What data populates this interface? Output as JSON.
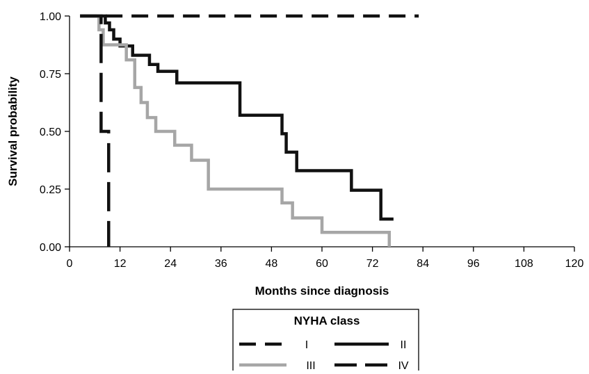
{
  "chart_data": {
    "type": "line",
    "step": true,
    "title": "",
    "xlabel": "Months since diagnosis",
    "ylabel": "Survival probability",
    "xlim": [
      0,
      120
    ],
    "ylim": [
      0,
      1
    ],
    "xticks": [
      "0",
      "12",
      "24",
      "36",
      "48",
      "60",
      "72",
      "84",
      "96",
      "108",
      "120"
    ],
    "yticks": [
      "0.00",
      "0.25",
      "0.50",
      "0.75",
      "1.00"
    ],
    "grid": false,
    "legend": {
      "title": "NYHA class",
      "placement": "bottom-center",
      "entries": [
        "I",
        "II",
        "III",
        "IV"
      ]
    },
    "series": [
      {
        "name": "I",
        "color": "#111111",
        "style": "dashed",
        "x": [
          2.5,
          83
        ],
        "y": [
          1.0,
          1.0
        ]
      },
      {
        "name": "II",
        "color": "#111111",
        "style": "solid",
        "x": [
          2.5,
          8.5,
          9.5,
          10.5,
          12,
          15,
          19,
          21,
          25.5,
          40.5,
          50.5,
          51.5,
          54,
          67,
          74,
          77
        ],
        "y": [
          1.0,
          0.97,
          0.94,
          0.9,
          0.87,
          0.83,
          0.79,
          0.76,
          0.71,
          0.57,
          0.49,
          0.41,
          0.33,
          0.245,
          0.12,
          0.12
        ]
      },
      {
        "name": "III",
        "color": "#a6a6a6",
        "style": "solid",
        "x": [
          2.5,
          7,
          8,
          13.5,
          15.5,
          17,
          18.5,
          20.5,
          25,
          29,
          33,
          50.5,
          53,
          60,
          76
        ],
        "y": [
          1.0,
          0.94,
          0.875,
          0.81,
          0.69,
          0.625,
          0.56,
          0.5,
          0.44,
          0.375,
          0.25,
          0.19,
          0.125,
          0.0625,
          0.0
        ]
      },
      {
        "name": "IV",
        "color": "#111111",
        "style": "longdash",
        "x": [
          2.5,
          7.5,
          9.3
        ],
        "y": [
          1.0,
          0.5,
          0.0
        ]
      }
    ]
  }
}
